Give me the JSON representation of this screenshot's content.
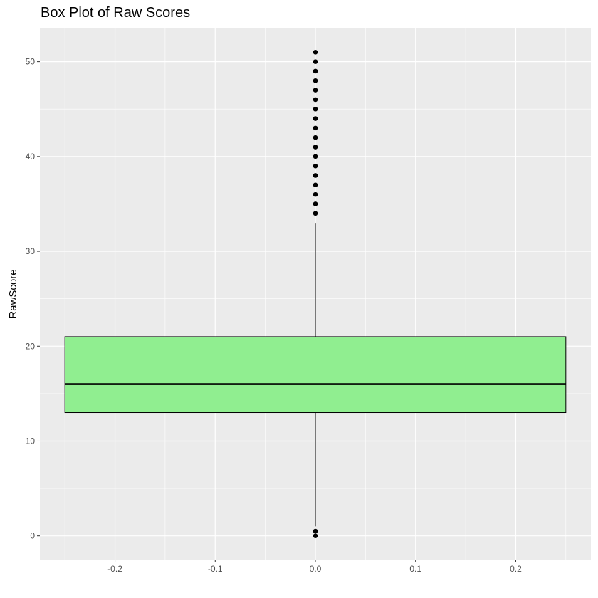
{
  "chart_data": {
    "type": "box",
    "title": "Box Plot of Raw Scores",
    "xlabel": "",
    "ylabel": "RawScore",
    "xlim": [
      -0.275,
      0.275
    ],
    "ylim": [
      -2.5,
      53.5
    ],
    "x_ticks": [
      -0.2,
      -0.1,
      0.0,
      0.1,
      0.2
    ],
    "x_tick_labels": [
      "-0.2",
      "-0.1",
      "0.0",
      "0.1",
      "0.2"
    ],
    "y_ticks": [
      0,
      10,
      20,
      30,
      40,
      50
    ],
    "y_tick_labels": [
      "0",
      "10",
      "20",
      "30",
      "40",
      "50"
    ],
    "grid": true,
    "box": {
      "x": 0,
      "width": 0.5,
      "lower_whisker": 1,
      "q1": 13,
      "median": 16,
      "q3": 21,
      "upper_whisker": 33,
      "outliers": [
        0,
        0.5,
        34,
        35,
        36,
        37,
        38,
        39,
        40,
        41,
        42,
        43,
        44,
        45,
        46,
        47,
        48,
        49,
        50,
        51
      ]
    },
    "colors": {
      "box_fill": "#90EE90",
      "panel_background": "#EBEBEB",
      "grid": "#FFFFFF",
      "outlier": "#000000"
    }
  }
}
